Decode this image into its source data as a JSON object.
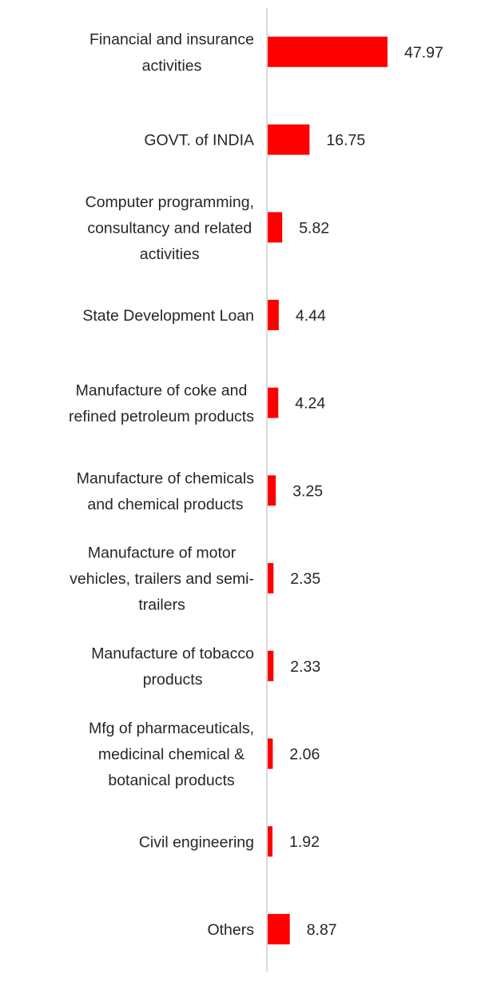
{
  "chart_data": {
    "type": "bar",
    "orientation": "horizontal",
    "categories": [
      "Financial and insurance activities",
      "GOVT. of INDIA",
      "Computer programming, consultancy and related activities",
      "State Development Loan",
      "Manufacture of coke and refined petroleum products",
      "Manufacture of chemicals and chemical products",
      "Manufacture of motor vehicles, trailers and semi-trailers",
      "Manufacture of tobacco products",
      "Mfg of pharmaceuticals, medicinal chemical & botanical products",
      "Civil engineering",
      "Others"
    ],
    "category_label_lines": [
      [
        "Financial and insurance",
        "activities"
      ],
      [
        "GOVT. of INDIA"
      ],
      [
        "Computer programming,",
        "consultancy and related",
        "activities"
      ],
      [
        "State Development Loan"
      ],
      [
        "Manufacture of coke and",
        "refined petroleum products"
      ],
      [
        "Manufacture of chemicals",
        "and chemical products"
      ],
      [
        "Manufacture of motor",
        "vehicles, trailers and semi-",
        "trailers"
      ],
      [
        "Manufacture of tobacco",
        "products"
      ],
      [
        "Mfg of pharmaceuticals,",
        "medicinal chemical &",
        "botanical products"
      ],
      [
        "Civil engineering"
      ],
      [
        "Others"
      ]
    ],
    "values": [
      47.97,
      16.75,
      5.82,
      4.44,
      4.24,
      3.25,
      2.35,
      2.33,
      2.06,
      1.92,
      8.87
    ],
    "value_labels": [
      "47.97",
      "16.75",
      "5.82",
      "4.44",
      "4.24",
      "3.25",
      "2.35",
      "2.33",
      "2.06",
      "1.92",
      "8.87"
    ],
    "title": "",
    "xlabel": "",
    "ylabel": "",
    "xlim": [
      0,
      50
    ],
    "grid": false,
    "legend": "none",
    "bar_color": "#ff0000",
    "axis_color": "#d9d9d9",
    "text_color": "#262626"
  }
}
